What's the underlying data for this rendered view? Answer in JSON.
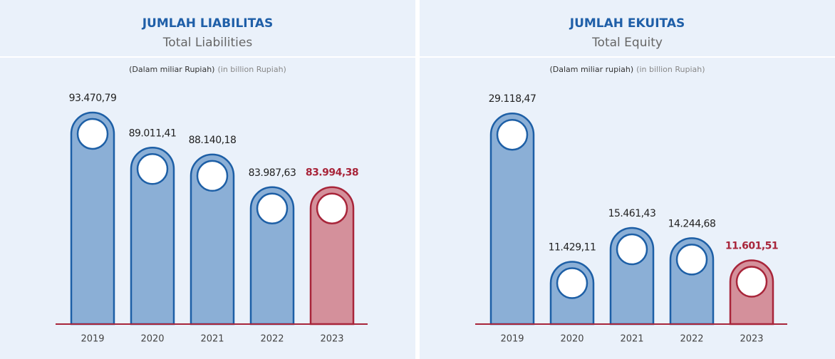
{
  "chart_data": [
    {
      "type": "bar",
      "title": "JUMLAH LIABILITAS",
      "subtitle": "Total Liabilities",
      "note": "(Dalam miliar Rupiah)",
      "note_en": "(in billion Rupiah)",
      "categories": [
        "2019",
        "2020",
        "2021",
        "2022",
        "2023"
      ],
      "values": [
        93470.79,
        89011.41,
        88140.18,
        83987.63,
        83994.38
      ],
      "value_labels": [
        "93.470,79",
        "89.011,41",
        "88.140,18",
        "83.987,63",
        "83.994,38"
      ],
      "color": "#8bafd6",
      "stroke": "#1d5fa6",
      "highlight_color": "#d4909b",
      "highlight_stroke": "#a8253a",
      "highlight_index": 4,
      "ylim": [
        66600,
        96000
      ]
    },
    {
      "type": "bar",
      "title": "JUMLAH EKUITAS",
      "subtitle": "Total Equity",
      "note": "(Dalam miliar rupiah)",
      "note_en": "(in billion Rupiah)",
      "categories": [
        "2019",
        "2020",
        "2021",
        "2022",
        "2023"
      ],
      "values": [
        29118.47,
        11429.11,
        15461.43,
        14244.68,
        11601.51
      ],
      "value_labels": [
        "29.118,47",
        "11.429,11",
        "15.461,43",
        "14.244,68",
        "11.601,51"
      ],
      "color": "#8bafd6",
      "stroke": "#1d5fa6",
      "highlight_color": "#d4909b",
      "highlight_stroke": "#a8253a",
      "highlight_index": 4,
      "ylim": [
        4000,
        31600
      ]
    }
  ]
}
